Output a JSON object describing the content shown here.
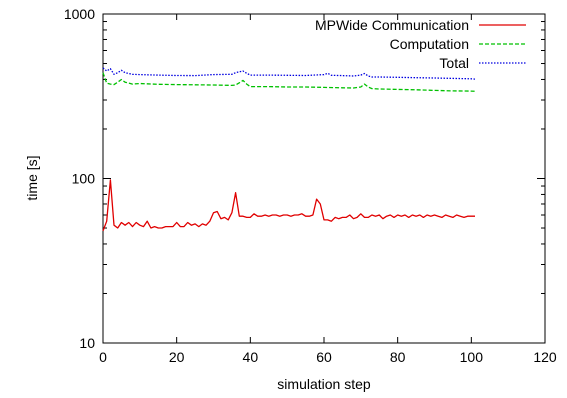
{
  "chart_data": {
    "type": "line",
    "title": "",
    "xlabel": "simulation step",
    "ylabel": "time [s]",
    "xlim": [
      0,
      120
    ],
    "ylim": [
      10,
      1000
    ],
    "yscale": "log",
    "grid": false,
    "legend_position": "top-right",
    "x_ticks": [
      0,
      20,
      40,
      60,
      80,
      100,
      120
    ],
    "x_tick_labels": [
      "0",
      "20",
      "40",
      "60",
      "80",
      "100",
      "120"
    ],
    "y_ticks": [
      10,
      100,
      1000
    ],
    "y_tick_labels": [
      "10",
      "100",
      "1000"
    ],
    "series": [
      {
        "name": "MPWide Communication",
        "color": "#e00000",
        "dash": "solid",
        "x": [
          0,
          1,
          2,
          3,
          4,
          5,
          6,
          7,
          8,
          9,
          10,
          11,
          12,
          13,
          14,
          15,
          16,
          17,
          18,
          19,
          20,
          21,
          22,
          23,
          24,
          25,
          26,
          27,
          28,
          29,
          30,
          31,
          32,
          33,
          34,
          35,
          36,
          37,
          38,
          39,
          40,
          41,
          42,
          43,
          44,
          45,
          46,
          47,
          48,
          49,
          50,
          51,
          52,
          53,
          54,
          55,
          56,
          57,
          58,
          59,
          60,
          61,
          62,
          63,
          64,
          65,
          66,
          67,
          68,
          69,
          70,
          71,
          72,
          73,
          74,
          75,
          76,
          77,
          78,
          79,
          80,
          81,
          82,
          83,
          84,
          85,
          86,
          87,
          88,
          89,
          90,
          91,
          92,
          93,
          94,
          95,
          96,
          97,
          98,
          99,
          100,
          101
        ],
        "y": [
          48,
          55,
          98,
          52,
          50,
          54,
          52,
          54,
          51,
          54,
          52,
          51,
          55,
          50,
          51,
          50,
          50,
          51,
          51,
          51,
          54,
          51,
          51,
          54,
          52,
          53,
          51,
          53,
          52,
          55,
          62,
          63,
          57,
          58,
          56,
          62,
          82,
          59,
          59,
          58,
          58,
          61,
          59,
          59,
          60,
          59,
          60,
          60,
          59,
          60,
          60,
          59,
          60,
          60,
          61,
          59,
          59,
          60,
          75,
          70,
          56,
          56,
          55,
          58,
          57,
          58,
          58,
          60,
          57,
          58,
          61,
          58,
          58,
          60,
          59,
          60,
          57,
          59,
          60,
          58,
          60,
          59,
          60,
          58,
          60,
          59,
          60,
          58,
          60,
          59,
          60,
          59,
          58,
          60,
          59,
          58,
          60,
          59,
          58,
          59,
          59,
          59
        ]
      },
      {
        "name": "Computation",
        "color": "#00c000",
        "dash": "dashed",
        "x": [
          0,
          1,
          2,
          3,
          4,
          5,
          6,
          8,
          10,
          15,
          20,
          25,
          30,
          35,
          36,
          37,
          38,
          39,
          40,
          45,
          50,
          55,
          60,
          65,
          68,
          70,
          71,
          72,
          73,
          75,
          80,
          85,
          90,
          95,
          100,
          101
        ],
        "y": [
          440,
          380,
          375,
          372,
          385,
          400,
          385,
          375,
          378,
          374,
          372,
          371,
          370,
          368,
          370,
          382,
          395,
          375,
          362,
          362,
          360,
          360,
          358,
          356,
          355,
          360,
          375,
          360,
          352,
          350,
          348,
          346,
          343,
          341,
          340,
          339
        ]
      },
      {
        "name": "Total",
        "color": "#0000e0",
        "dash": "dotted",
        "x": [
          0,
          1,
          2,
          3,
          4,
          5,
          6,
          8,
          10,
          15,
          20,
          25,
          30,
          35,
          36,
          37,
          38,
          39,
          40,
          45,
          50,
          55,
          60,
          61,
          62,
          65,
          68,
          70,
          71,
          72,
          73,
          75,
          80,
          85,
          90,
          95,
          100,
          101
        ],
        "y": [
          470,
          450,
          465,
          430,
          440,
          455,
          440,
          430,
          428,
          425,
          423,
          422,
          428,
          430,
          440,
          445,
          450,
          436,
          425,
          425,
          424,
          423,
          428,
          436,
          424,
          422,
          420,
          425,
          435,
          420,
          414,
          414,
          412,
          410,
          408,
          406,
          404,
          402
        ]
      }
    ]
  }
}
